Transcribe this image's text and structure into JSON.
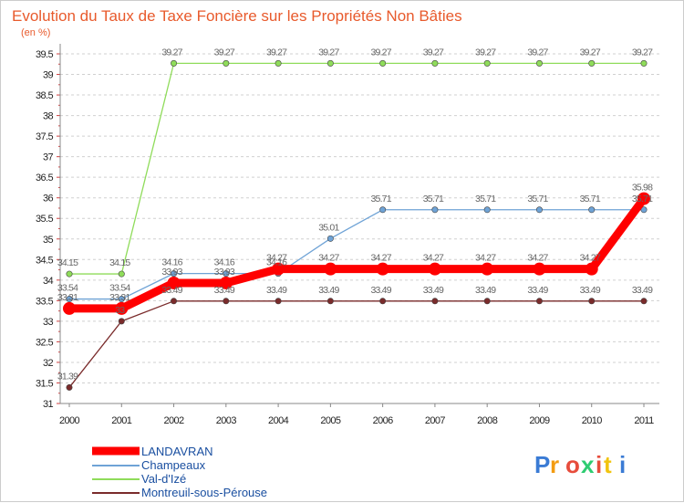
{
  "chart_data": {
    "type": "line",
    "title": "Evolution du Taux de Taxe Foncière sur les Propriétés Non Bâties",
    "unit_label": "(en %)",
    "xlabel": "",
    "ylabel": "",
    "categories": [
      "2000",
      "2001",
      "2002",
      "2003",
      "2004",
      "2005",
      "2006",
      "2007",
      "2008",
      "2009",
      "2010",
      "2011"
    ],
    "ylim": [
      31,
      39.5
    ],
    "yticks": [
      31,
      31.5,
      32,
      32.5,
      33,
      33.5,
      34,
      34.5,
      35,
      35.5,
      36,
      36.5,
      37,
      37.5,
      38,
      38.5,
      39,
      39.5
    ],
    "grid": "horizontal dashed",
    "legend_position": "bottom-left",
    "series": [
      {
        "name": "LANDAVRAN",
        "color": "#ff0000",
        "emphasis": true,
        "values": [
          33.31,
          33.31,
          33.93,
          33.93,
          34.27,
          34.27,
          34.27,
          34.27,
          34.27,
          34.27,
          34.27,
          35.98
        ]
      },
      {
        "name": "Champeaux",
        "color": "#6fa3d6",
        "values": [
          33.54,
          33.54,
          34.16,
          34.16,
          34.16,
          35.01,
          35.71,
          35.71,
          35.71,
          35.71,
          35.71,
          35.71
        ]
      },
      {
        "name": "Val-d'Izé",
        "color": "#8fdc5a",
        "values": [
          34.15,
          34.15,
          39.27,
          39.27,
          39.27,
          39.27,
          39.27,
          39.27,
          39.27,
          39.27,
          39.27,
          39.27
        ]
      },
      {
        "name": "Montreuil-sous-Pérouse",
        "color": "#7a2b2b",
        "values": [
          31.39,
          33.0,
          33.49,
          33.49,
          33.49,
          33.49,
          33.49,
          33.49,
          33.49,
          33.49,
          33.49,
          33.49
        ]
      }
    ],
    "point_labels": {
      "LANDAVRAN": [
        "33.31",
        "33.31",
        "33.93",
        "33.93",
        "34.27",
        "34.27",
        "34.27",
        "34.27",
        "34.27",
        "34.27",
        "34.27",
        "35.98"
      ],
      "Champeaux": [
        "33.54",
        "33.54",
        "34.16",
        "34.16",
        "34.16",
        "35.01",
        "35.71",
        "35.71",
        "35.71",
        "35.71",
        "35.71",
        "35.71"
      ],
      "Val-d'Izé": [
        "34.15",
        "34.15",
        "39.27",
        "39.27",
        "39.27",
        "39.27",
        "39.27",
        "39.27",
        "39.27",
        "39.27",
        "39.27",
        "39.27"
      ],
      "Montreuil-sous-Pérouse": [
        "31.39",
        "33",
        "33.49",
        "33.49",
        "33.49",
        "33.49",
        "33.49",
        "33.49",
        "33.49",
        "33.49",
        "33.49",
        "33.49"
      ]
    }
  },
  "logo": {
    "text": "Proxiti",
    "colors": [
      "#3a7bd5",
      "#f39c12",
      "#e74c3c",
      "#2ecc71",
      "#e74c3c",
      "#f1c40f",
      "#3a7bd5"
    ]
  }
}
